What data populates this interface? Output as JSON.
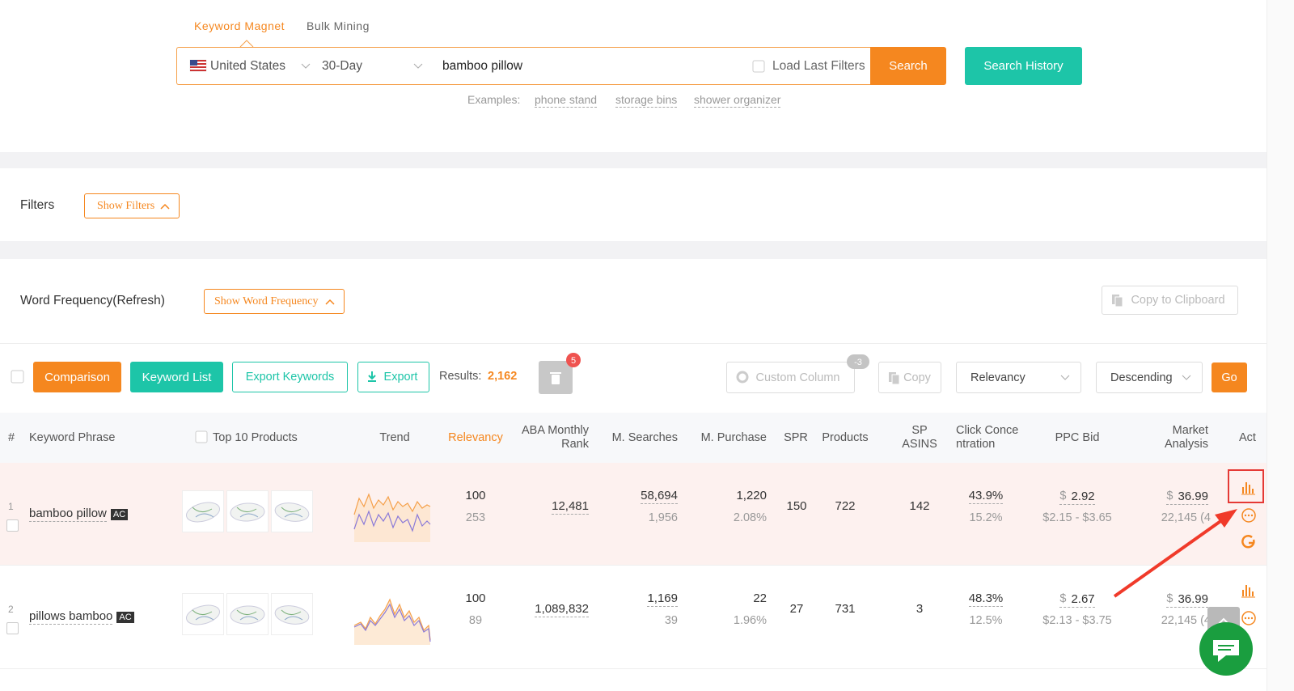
{
  "tabs": [
    "Keyword Magnet",
    "Bulk Mining"
  ],
  "search": {
    "country": "United States",
    "period": "30-Day",
    "query": "bamboo pillow",
    "load_last_filters": "Load Last Filters",
    "search_button": "Search",
    "history_button": "Search History"
  },
  "examples": {
    "label": "Examples:",
    "items": [
      "phone stand",
      "storage bins",
      "shower organizer"
    ]
  },
  "filters": {
    "label": "Filters",
    "button": "Show Filters"
  },
  "word_frequency": {
    "label": "Word Frequency(Refresh)",
    "button": "Show Word Frequency",
    "copy_button": "Copy to Clipboard"
  },
  "toolbar": {
    "comparison": "Comparison",
    "keyword_list": "Keyword List",
    "export_keywords": "Export Keywords",
    "export": "Export",
    "results_label": "Results:",
    "results": "2,162",
    "trash_badge": "5",
    "custom_column": "Custom Column",
    "custom_column_badge": "-3",
    "copy": "Copy",
    "sort_by": "Relevancy",
    "order": "Descending",
    "go": "Go"
  },
  "table": {
    "headers": [
      "#",
      "Keyword Phrase",
      "Top 10 Products",
      "Trend",
      "Relevancy",
      "ABA Monthly Rank",
      "M. Searches",
      "M. Purchase",
      "SPR",
      "Products",
      "SP ASINS",
      "Click Concentration",
      "PPC Bid",
      "Market Analysis",
      "Act"
    ],
    "rows": [
      {
        "index": "1",
        "keyword": "bamboo pillow",
        "tag": "AC",
        "relevancy": "100",
        "relevancy_sub": "253",
        "aba_rank": "12,481",
        "searches": "58,694",
        "searches_sub": "1,956",
        "purchase": "1,220",
        "purchase_sub": "2.08%",
        "spr": "150",
        "products": "722",
        "sp_asins": "142",
        "click": "43.9%",
        "click_sub": "15.2%",
        "ppc_currency": "$",
        "ppc": "2.92",
        "ppc_range": "$2.15 - $3.65",
        "market_currency": "$",
        "market": "36.99",
        "market_sub": "22,145 (4"
      },
      {
        "index": "2",
        "keyword": "pillows bamboo",
        "tag": "AC",
        "relevancy": "100",
        "relevancy_sub": "89",
        "aba_rank": "1,089,832",
        "searches": "1,169",
        "searches_sub": "39",
        "purchase": "22",
        "purchase_sub": "1.96%",
        "spr": "27",
        "products": "731",
        "sp_asins": "3",
        "click": "48.3%",
        "click_sub": "12.5%",
        "ppc_currency": "$",
        "ppc": "2.67",
        "ppc_range": "$2.13 - $3.75",
        "market_currency": "$",
        "market": "36.99",
        "market_sub": "22,145 (4"
      }
    ]
  }
}
